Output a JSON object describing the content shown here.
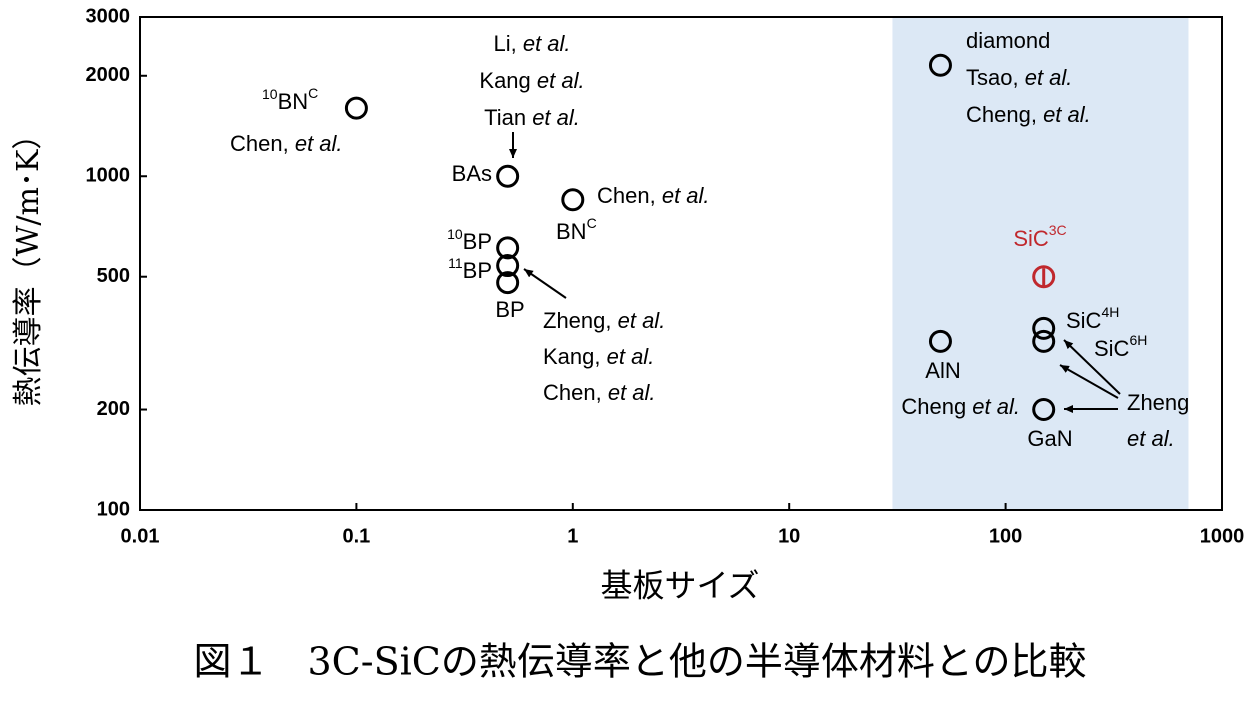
{
  "chart_data": {
    "type": "scatter",
    "x_label": "基板サイズ",
    "y_label": "熱伝導率（W/m･K）",
    "caption": "図１　3C-SiCの熱伝導率と他の半導体材料との比較",
    "xscale": "log",
    "yscale": "log",
    "xlim": [
      0.01,
      1000
    ],
    "ylim": [
      100,
      3000
    ],
    "xticks": [
      0.01,
      0.1,
      1,
      10,
      100,
      1000
    ],
    "yticks": [
      100,
      200,
      500,
      1000,
      2000,
      3000
    ],
    "highlight_xrange": [
      30,
      700
    ],
    "highlight_color": "#dce8f5",
    "points": [
      {
        "x": 0.1,
        "y": 1600,
        "color": "#000000",
        "label": {
          "pre": "10",
          "text": "BN",
          "sup": "C"
        }
      },
      {
        "x": 0.5,
        "y": 1000,
        "color": "#000000",
        "label": {
          "text": "BAs"
        }
      },
      {
        "x": 1,
        "y": 850,
        "color": "#000000",
        "label": {
          "text": "BN",
          "sup": "C"
        }
      },
      {
        "x": 0.5,
        "y": 610,
        "color": "#000000",
        "label": {
          "pre": "10",
          "text": "BP"
        }
      },
      {
        "x": 0.5,
        "y": 540,
        "color": "#000000",
        "label": {
          "pre": "11",
          "text": "BP"
        }
      },
      {
        "x": 0.5,
        "y": 480,
        "color": "#000000",
        "label": {
          "text": "BP"
        }
      },
      {
        "x": 50,
        "y": 2150,
        "color": "#000000",
        "label": {
          "text": "diamond"
        }
      },
      {
        "x": 150,
        "y": 500,
        "error": 30,
        "color": "#c0282d",
        "label": {
          "text": "SiC",
          "sup": "3C"
        }
      },
      {
        "x": 150,
        "y": 350,
        "color": "#000000",
        "label": {
          "text": "SiC",
          "sup": "4H"
        }
      },
      {
        "x": 150,
        "y": 320,
        "color": "#000000",
        "label": {
          "text": "SiC",
          "sup": "6H"
        }
      },
      {
        "x": 50,
        "y": 320,
        "color": "#000000",
        "label": {
          "text": "AlN"
        }
      },
      {
        "x": 150,
        "y": 200,
        "color": "#000000",
        "label": {
          "text": "GaN"
        }
      }
    ],
    "annotations": [
      {
        "lines": [
          {
            "text": "Li, ",
            "em": "et al."
          },
          {
            "text": "Kang ",
            "em": "et al."
          },
          {
            "text": "Tian ",
            "em": "et al."
          }
        ]
      },
      {
        "lines": [
          {
            "text": "Chen, ",
            "em": "et al."
          }
        ]
      },
      {
        "lines": [
          {
            "text": "Chen, ",
            "em": "et al."
          }
        ]
      },
      {
        "lines": [
          {
            "text": "Zheng, ",
            "em": "et al."
          },
          {
            "text": "Kang, ",
            "em": "et al."
          },
          {
            "text": "Chen, ",
            "em": "et al."
          }
        ]
      },
      {
        "lines": [
          {
            "text": "Tsao, ",
            "em": "et al."
          },
          {
            "text": "Cheng, ",
            "em": "et al."
          }
        ]
      },
      {
        "lines": [
          {
            "text": "Cheng ",
            "em": "et al."
          }
        ]
      },
      {
        "lines": [
          {
            "text": "Zheng"
          },
          {
            "em": "et al."
          }
        ]
      }
    ]
  }
}
